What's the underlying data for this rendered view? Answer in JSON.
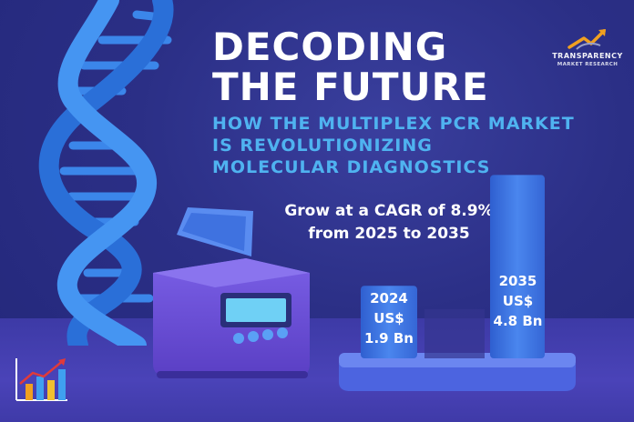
{
  "headline": {
    "line1": "DECODING",
    "line2": "THE FUTURE"
  },
  "subheadline": {
    "line1": "HOW THE MULTIPLEX PCR MARKET",
    "line2": "IS REVOLUTIONIZING",
    "line3": "MOLECULAR DIAGNOSTICS"
  },
  "growth": {
    "line1": "Grow at a CAGR of 8.9%",
    "line2": "from 2025 to 2035"
  },
  "logo": {
    "line1": "TRANSPARENCY",
    "line2": "MARKET RESEARCH"
  },
  "market": {
    "bar_2024": {
      "year": "2024",
      "currency": "US$",
      "amount": "1.9 Bn",
      "value": 1.9
    },
    "bar_2035": {
      "year": "2035",
      "currency": "US$",
      "amount": "4.8 Bn",
      "value": 4.8
    }
  },
  "colors": {
    "background": "#2b2f86",
    "headline": "#ffffff",
    "subheadline": "#4fb3f0",
    "dna": "#2f7fe0",
    "bar": "#3a6fe0",
    "device": "#6a4fd6"
  },
  "icons": [
    "dna-helix-icon",
    "pcr-thermocycler-icon",
    "growth-chart-icon",
    "logo-arrow-icon"
  ]
}
